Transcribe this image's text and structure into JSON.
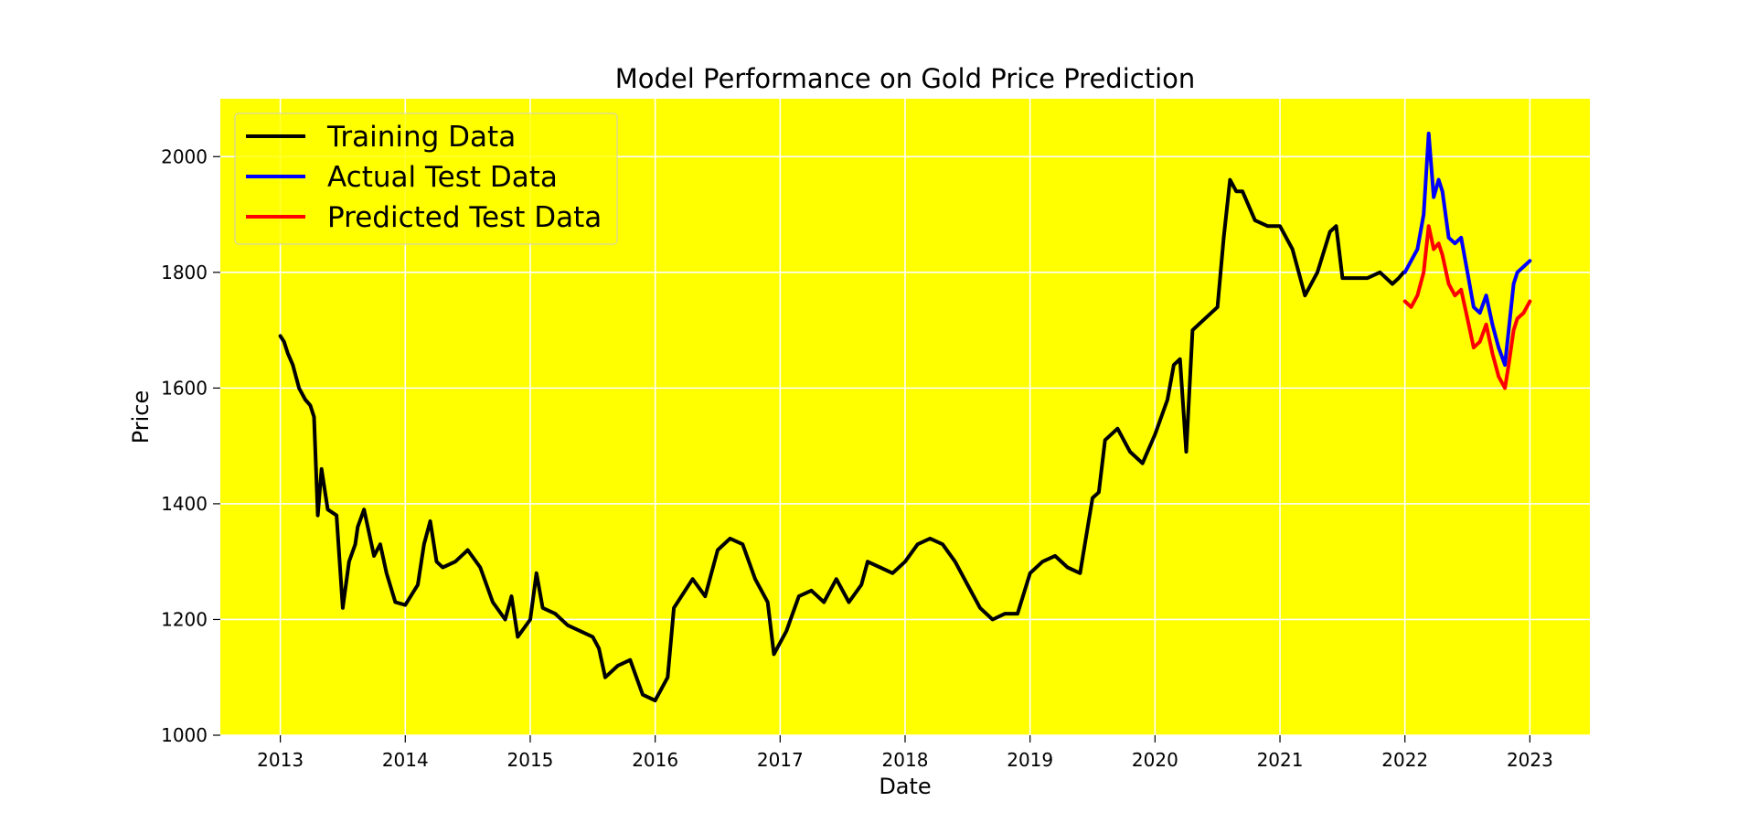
{
  "chart_data": {
    "type": "line",
    "title": "Model Performance on Gold Price Prediction",
    "xlabel": "Date",
    "ylabel": "Price",
    "xlim": [
      2012.52,
      2023.48
    ],
    "ylim": [
      1000,
      2100
    ],
    "x_ticks": [
      2013,
      2014,
      2015,
      2016,
      2017,
      2018,
      2019,
      2020,
      2021,
      2022,
      2023
    ],
    "y_ticks": [
      1000,
      1200,
      1400,
      1600,
      1800,
      2000
    ],
    "grid": true,
    "legend_position": "upper-left",
    "plot_background": "#ffff00",
    "series": [
      {
        "name": "Training Data",
        "color": "#000000",
        "x": [
          2013.0,
          2013.03,
          2013.06,
          2013.1,
          2013.15,
          2013.2,
          2013.24,
          2013.27,
          2013.3,
          2013.33,
          2013.38,
          2013.45,
          2013.5,
          2013.55,
          2013.6,
          2013.62,
          2013.67,
          2013.75,
          2013.8,
          2013.85,
          2013.92,
          2014.0,
          2014.1,
          2014.15,
          2014.2,
          2014.25,
          2014.3,
          2014.4,
          2014.5,
          2014.6,
          2014.7,
          2014.8,
          2014.85,
          2014.9,
          2015.0,
          2015.05,
          2015.1,
          2015.2,
          2015.3,
          2015.4,
          2015.5,
          2015.55,
          2015.6,
          2015.7,
          2015.8,
          2015.85,
          2015.9,
          2016.0,
          2016.1,
          2016.15,
          2016.3,
          2016.4,
          2016.5,
          2016.6,
          2016.7,
          2016.8,
          2016.9,
          2016.95,
          2017.05,
          2017.15,
          2017.25,
          2017.35,
          2017.45,
          2017.55,
          2017.65,
          2017.7,
          2017.8,
          2017.9,
          2018.0,
          2018.1,
          2018.2,
          2018.3,
          2018.4,
          2018.5,
          2018.6,
          2018.7,
          2018.8,
          2018.9,
          2019.0,
          2019.1,
          2019.2,
          2019.3,
          2019.4,
          2019.5,
          2019.55,
          2019.6,
          2019.7,
          2019.8,
          2019.9,
          2020.0,
          2020.1,
          2020.15,
          2020.2,
          2020.25,
          2020.3,
          2020.4,
          2020.5,
          2020.55,
          2020.6,
          2020.65,
          2020.7,
          2020.8,
          2020.9,
          2021.0,
          2021.1,
          2021.2,
          2021.3,
          2021.4,
          2021.45,
          2021.5,
          2021.6,
          2021.7,
          2021.8,
          2021.9,
          2021.95,
          2021.99
        ],
        "y": [
          1690,
          1680,
          1660,
          1640,
          1600,
          1580,
          1570,
          1550,
          1380,
          1460,
          1390,
          1380,
          1220,
          1300,
          1330,
          1360,
          1390,
          1310,
          1330,
          1280,
          1230,
          1225,
          1260,
          1330,
          1370,
          1300,
          1290,
          1300,
          1320,
          1290,
          1230,
          1200,
          1240,
          1170,
          1200,
          1280,
          1220,
          1210,
          1190,
          1180,
          1170,
          1150,
          1100,
          1120,
          1130,
          1100,
          1070,
          1060,
          1100,
          1220,
          1270,
          1240,
          1320,
          1340,
          1330,
          1270,
          1230,
          1140,
          1180,
          1240,
          1250,
          1230,
          1270,
          1230,
          1260,
          1300,
          1290,
          1280,
          1300,
          1330,
          1340,
          1330,
          1300,
          1260,
          1220,
          1200,
          1210,
          1210,
          1280,
          1300,
          1310,
          1290,
          1280,
          1410,
          1420,
          1510,
          1530,
          1490,
          1470,
          1520,
          1580,
          1640,
          1650,
          1490,
          1700,
          1720,
          1740,
          1860,
          1960,
          1940,
          1940,
          1890,
          1880,
          1880,
          1840,
          1760,
          1800,
          1870,
          1880,
          1790,
          1790,
          1790,
          1800,
          1780,
          1790,
          1800
        ]
      },
      {
        "name": "Actual Test Data",
        "color": "#0000ff",
        "x": [
          2022.0,
          2022.05,
          2022.1,
          2022.15,
          2022.19,
          2022.23,
          2022.27,
          2022.3,
          2022.35,
          2022.4,
          2022.45,
          2022.5,
          2022.55,
          2022.6,
          2022.65,
          2022.7,
          2022.75,
          2022.8,
          2022.83,
          2022.87,
          2022.9,
          2022.95,
          2023.0
        ],
        "y": [
          1800,
          1820,
          1840,
          1900,
          2040,
          1930,
          1960,
          1940,
          1860,
          1850,
          1860,
          1800,
          1740,
          1730,
          1760,
          1710,
          1670,
          1640,
          1700,
          1780,
          1800,
          1810,
          1820
        ]
      },
      {
        "name": "Predicted Test Data",
        "color": "#ff0000",
        "x": [
          2022.0,
          2022.05,
          2022.1,
          2022.15,
          2022.19,
          2022.23,
          2022.27,
          2022.3,
          2022.35,
          2022.4,
          2022.45,
          2022.5,
          2022.55,
          2022.6,
          2022.65,
          2022.7,
          2022.75,
          2022.8,
          2022.83,
          2022.87,
          2022.9,
          2022.95,
          2023.0
        ],
        "y": [
          1750,
          1740,
          1760,
          1800,
          1880,
          1840,
          1850,
          1830,
          1780,
          1760,
          1770,
          1720,
          1670,
          1680,
          1710,
          1660,
          1620,
          1600,
          1640,
          1700,
          1720,
          1730,
          1750
        ]
      }
    ]
  }
}
